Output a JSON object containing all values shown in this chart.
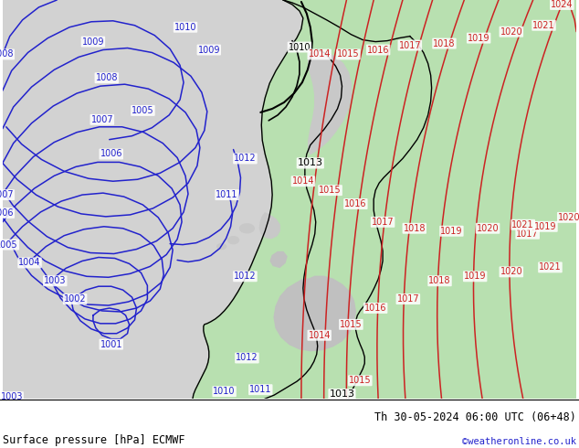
{
  "title_left": "Surface pressure [hPa] ECMWF",
  "title_right": "Th 30-05-2024 06:00 UTC (06+48)",
  "copyright": "©weatheronline.co.uk",
  "bg_color": "#d8d8d8",
  "land_green": "#b8e0b0",
  "land_gray": "#c0c0c0",
  "water_color": "#d0d0d0",
  "blue": "#2222cc",
  "red": "#cc2222",
  "black": "#000000",
  "footer_bg": "#ffffff",
  "footer_fontsize": 8.5,
  "copyright_color": "#2222cc"
}
